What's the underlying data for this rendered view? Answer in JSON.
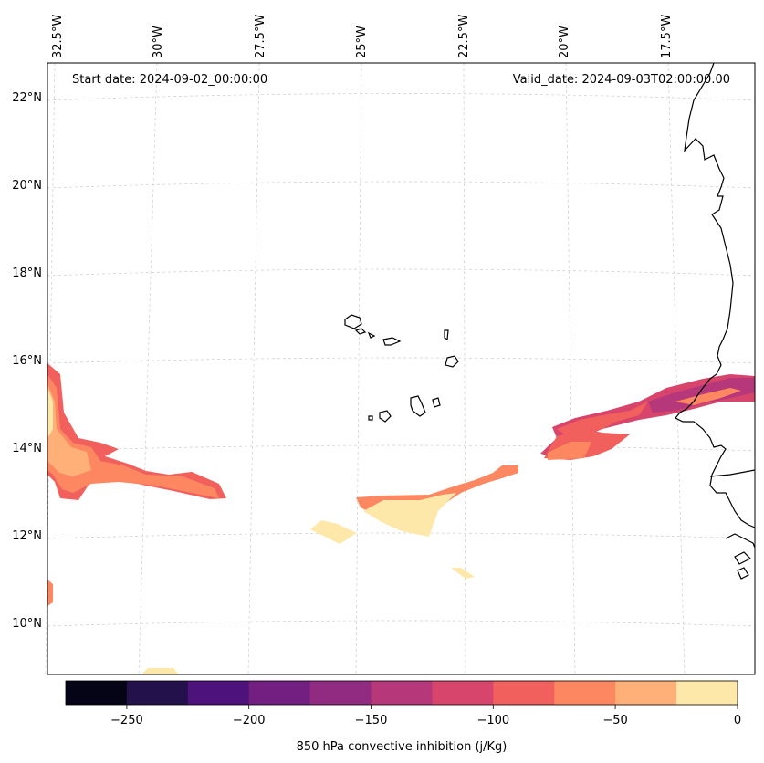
{
  "map": {
    "annotation_left": "Start date: 2024-09-02_00:00:00",
    "annotation_right": "Valid_date: 2024-09-03T02:00:00.00",
    "lon_labels": [
      "32.5°W",
      "30°W",
      "27.5°W",
      "25°W",
      "22.5°W",
      "20°W",
      "17.5°W"
    ],
    "lat_labels": [
      "22°N",
      "20°N",
      "18°N",
      "16°N",
      "14°N",
      "12°N",
      "10°N"
    ],
    "gridlines": true,
    "coastline_color": "#000000",
    "features": [
      "cape-verde-islands",
      "west-africa-coastline"
    ]
  },
  "colorbar": {
    "label": "850 hPa convective inhibition (j/Kg)",
    "tick_labels": [
      "−250",
      "−200",
      "−150",
      "−100",
      "−50",
      "0"
    ],
    "levels": [
      -275,
      -250,
      -225,
      -200,
      -175,
      -150,
      -125,
      -100,
      -75,
      -50,
      -25,
      0
    ],
    "colors": [
      "#050416",
      "#22114a",
      "#4d127b",
      "#721f81",
      "#912b81",
      "#b6377a",
      "#d8456c",
      "#f1605d",
      "#fc8761",
      "#feb078",
      "#fde7a9"
    ]
  }
}
